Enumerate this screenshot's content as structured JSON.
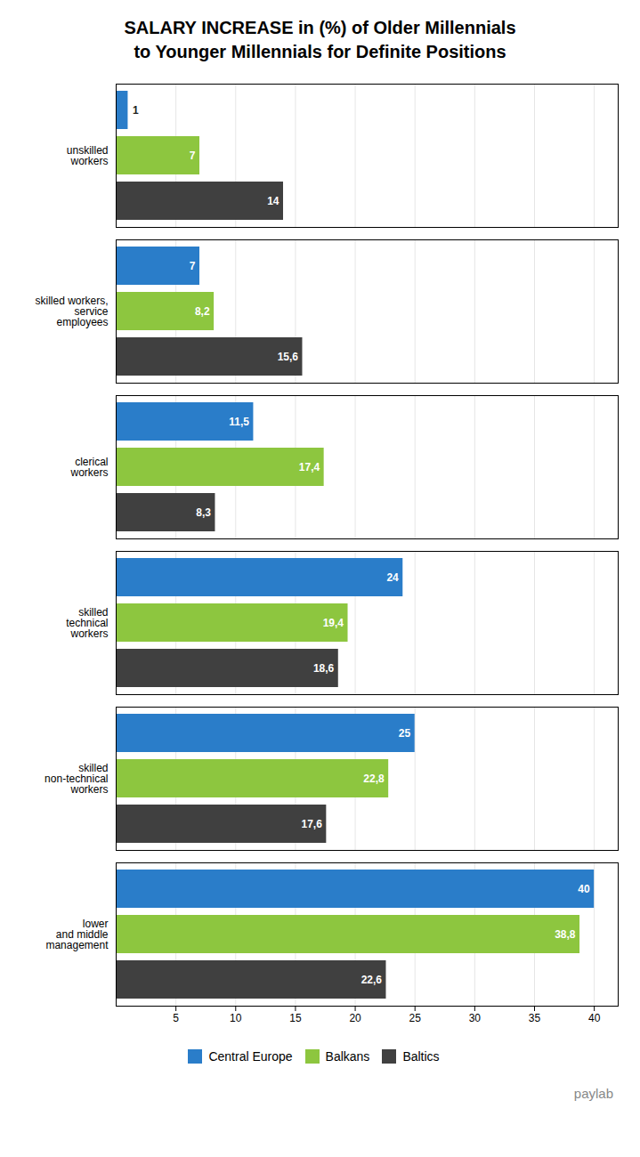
{
  "chart_data": {
    "type": "bar",
    "orientation": "horizontal",
    "title": "SALARY INCREASE in (%) of Older Millennials\nto Younger Millennials for Definite Positions",
    "categories": [
      "unskilled\nworkers",
      "skilled workers,\nservice\nemployees",
      "clerical\nworkers",
      "skilled\ntechnical\nworkers",
      "skilled\nnon-technical\nworkers",
      "lower\nand middle\nmanagement"
    ],
    "series": [
      {
        "name": "Central Europe",
        "color": "#2a7dc9",
        "values": [
          1,
          7,
          11.5,
          24,
          25,
          40
        ],
        "value_labels": [
          "1",
          "7",
          "11,5",
          "24",
          "25",
          "40"
        ]
      },
      {
        "name": "Balkans",
        "color": "#8dc63f",
        "values": [
          7,
          8.2,
          17.4,
          19.4,
          22.8,
          38.8
        ],
        "value_labels": [
          "7",
          "8,2",
          "17,4",
          "19,4",
          "22,8",
          "38,8"
        ]
      },
      {
        "name": "Baltics",
        "color": "#404040",
        "values": [
          14,
          15.6,
          8.3,
          18.6,
          17.6,
          22.6
        ],
        "value_labels": [
          "14",
          "15,6",
          "8,3",
          "18,6",
          "17,6",
          "22,6"
        ]
      }
    ],
    "xlim": [
      0,
      42
    ],
    "xticks": [
      5,
      10,
      15,
      20,
      25,
      30,
      35,
      40
    ],
    "grid": true,
    "legend": "bottom",
    "data_labels": true,
    "annotations": [
      "paylab"
    ]
  }
}
